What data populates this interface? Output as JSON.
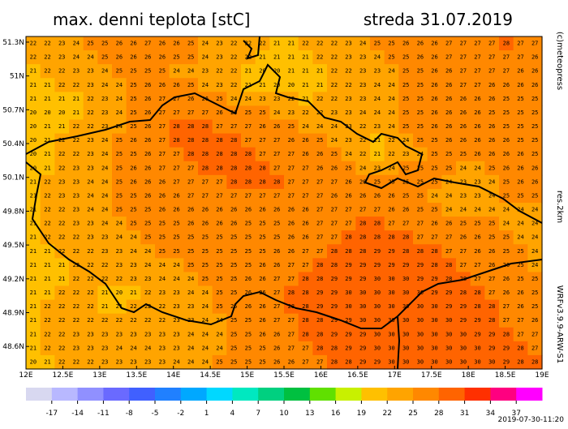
{
  "header": {
    "title": "max. denni teplota [stC]",
    "date": "streda 31.07.2019"
  },
  "credits": {
    "copyright": "(c)meteopress",
    "resolution": "res.2km",
    "model": "WRFv3.9.9-ARW-S1",
    "timestamp": "2019-07-30-11:20"
  },
  "map": {
    "xlim": [
      12,
      19
    ],
    "ylim": [
      48.4,
      51.35
    ],
    "xticks": [
      {
        "value": 12,
        "label": "12E"
      },
      {
        "value": 12.5,
        "label": "12.5E"
      },
      {
        "value": 13,
        "label": "13E"
      },
      {
        "value": 13.5,
        "label": "13.5E"
      },
      {
        "value": 14,
        "label": "14E"
      },
      {
        "value": 14.5,
        "label": "14.5E"
      },
      {
        "value": 15,
        "label": "15E"
      },
      {
        "value": 15.5,
        "label": "15.5E"
      },
      {
        "value": 16,
        "label": "16E"
      },
      {
        "value": 16.5,
        "label": "16.5E"
      },
      {
        "value": 17,
        "label": "17E"
      },
      {
        "value": 17.5,
        "label": "17.5E"
      },
      {
        "value": 18,
        "label": "18E"
      },
      {
        "value": 18.5,
        "label": "18.5E"
      },
      {
        "value": 19,
        "label": "19E"
      }
    ],
    "yticks": [
      {
        "value": 51.3,
        "label": "51.3N"
      },
      {
        "value": 51,
        "label": "51N"
      },
      {
        "value": 50.7,
        "label": "50.7N"
      },
      {
        "value": 50.4,
        "label": "50.4N"
      },
      {
        "value": 50.1,
        "label": "50.1N"
      },
      {
        "value": 49.8,
        "label": "49.8N"
      },
      {
        "value": 49.5,
        "label": "49.5N"
      },
      {
        "value": 49.2,
        "label": "49.2N"
      },
      {
        "value": 48.9,
        "label": "48.9N"
      },
      {
        "value": 48.6,
        "label": "48.6N"
      }
    ],
    "grid": [
      [
        22,
        22,
        23,
        24,
        25,
        25,
        26,
        26,
        27,
        26,
        26,
        25,
        24,
        23,
        22,
        22,
        22,
        21,
        21,
        22,
        22,
        22,
        23,
        24,
        25,
        25,
        26,
        26,
        26,
        27,
        27,
        27,
        27,
        28,
        27,
        27
      ],
      [
        22,
        22,
        23,
        24,
        24,
        25,
        26,
        26,
        26,
        26,
        25,
        25,
        24,
        23,
        22,
        22,
        21,
        21,
        21,
        21,
        22,
        22,
        23,
        23,
        24,
        25,
        25,
        26,
        26,
        27,
        27,
        27,
        27,
        27,
        27,
        26
      ],
      [
        21,
        22,
        22,
        23,
        23,
        24,
        25,
        25,
        25,
        25,
        24,
        24,
        23,
        22,
        22,
        21,
        20,
        20,
        21,
        21,
        21,
        22,
        22,
        23,
        23,
        24,
        25,
        25,
        26,
        26,
        27,
        27,
        27,
        27,
        26,
        26
      ],
      [
        21,
        21,
        22,
        22,
        23,
        24,
        24,
        25,
        26,
        26,
        26,
        25,
        24,
        23,
        22,
        21,
        21,
        20,
        20,
        21,
        21,
        22,
        22,
        23,
        24,
        24,
        25,
        25,
        26,
        26,
        27,
        27,
        26,
        26,
        26,
        26
      ],
      [
        21,
        21,
        21,
        21,
        22,
        23,
        24,
        25,
        26,
        27,
        27,
        26,
        26,
        25,
        24,
        24,
        23,
        23,
        22,
        21,
        22,
        22,
        23,
        23,
        24,
        24,
        25,
        25,
        26,
        26,
        26,
        26,
        26,
        25,
        25,
        25
      ],
      [
        20,
        20,
        20,
        21,
        22,
        23,
        24,
        25,
        26,
        27,
        27,
        27,
        27,
        26,
        26,
        25,
        25,
        24,
        23,
        22,
        22,
        23,
        23,
        24,
        24,
        24,
        25,
        25,
        26,
        26,
        26,
        26,
        25,
        25,
        25,
        25
      ],
      [
        20,
        21,
        21,
        22,
        22,
        23,
        24,
        25,
        26,
        27,
        28,
        28,
        28,
        27,
        27,
        27,
        26,
        26,
        25,
        24,
        24,
        24,
        23,
        22,
        23,
        24,
        25,
        25,
        26,
        26,
        26,
        26,
        26,
        25,
        25,
        25
      ],
      [
        20,
        21,
        22,
        22,
        23,
        24,
        25,
        26,
        26,
        27,
        28,
        28,
        28,
        28,
        28,
        27,
        27,
        27,
        26,
        26,
        25,
        24,
        23,
        22,
        21,
        22,
        24,
        25,
        25,
        26,
        26,
        26,
        26,
        26,
        25,
        25
      ],
      [
        20,
        21,
        22,
        22,
        23,
        24,
        25,
        25,
        26,
        27,
        27,
        28,
        28,
        28,
        28,
        28,
        27,
        27,
        27,
        26,
        26,
        25,
        24,
        22,
        21,
        22,
        23,
        24,
        25,
        25,
        25,
        26,
        26,
        26,
        26,
        25
      ],
      [
        20,
        21,
        22,
        23,
        23,
        24,
        25,
        26,
        26,
        27,
        27,
        27,
        28,
        28,
        28,
        28,
        28,
        27,
        27,
        27,
        26,
        26,
        25,
        24,
        23,
        24,
        25,
        25,
        25,
        25,
        24,
        24,
        25,
        26,
        26,
        26
      ],
      [
        21,
        22,
        23,
        23,
        24,
        24,
        25,
        26,
        26,
        26,
        27,
        27,
        27,
        27,
        28,
        28,
        28,
        28,
        27,
        27,
        27,
        27,
        26,
        26,
        25,
        25,
        25,
        25,
        25,
        24,
        23,
        23,
        24,
        25,
        26,
        26
      ],
      [
        21,
        22,
        23,
        23,
        24,
        24,
        25,
        25,
        26,
        26,
        26,
        27,
        27,
        27,
        27,
        27,
        27,
        27,
        27,
        27,
        27,
        26,
        26,
        26,
        26,
        26,
        25,
        25,
        24,
        24,
        23,
        23,
        24,
        25,
        25,
        25
      ],
      [
        21,
        22,
        22,
        23,
        24,
        24,
        25,
        25,
        25,
        26,
        26,
        26,
        26,
        26,
        26,
        26,
        26,
        26,
        26,
        26,
        27,
        27,
        27,
        27,
        27,
        26,
        26,
        25,
        25,
        24,
        24,
        24,
        24,
        24,
        24,
        24
      ],
      [
        21,
        22,
        22,
        23,
        23,
        24,
        24,
        25,
        25,
        25,
        25,
        26,
        26,
        26,
        26,
        25,
        25,
        25,
        26,
        26,
        27,
        27,
        27,
        28,
        28,
        27,
        27,
        27,
        26,
        26,
        25,
        25,
        25,
        24,
        24,
        24
      ],
      [
        21,
        22,
        22,
        22,
        23,
        23,
        24,
        24,
        25,
        25,
        25,
        25,
        25,
        25,
        25,
        25,
        25,
        25,
        26,
        26,
        27,
        27,
        28,
        28,
        28,
        28,
        28,
        27,
        27,
        27,
        26,
        26,
        25,
        25,
        24,
        24
      ],
      [
        21,
        21,
        22,
        22,
        22,
        23,
        23,
        24,
        24,
        25,
        25,
        25,
        25,
        25,
        25,
        25,
        25,
        26,
        26,
        27,
        27,
        28,
        28,
        28,
        29,
        29,
        28,
        28,
        28,
        27,
        27,
        26,
        26,
        25,
        25,
        24
      ],
      [
        21,
        21,
        21,
        22,
        22,
        22,
        23,
        23,
        24,
        24,
        24,
        25,
        25,
        25,
        25,
        25,
        26,
        26,
        27,
        27,
        28,
        28,
        29,
        29,
        29,
        29,
        29,
        29,
        28,
        28,
        27,
        27,
        26,
        26,
        25,
        24
      ],
      [
        21,
        21,
        21,
        22,
        22,
        22,
        22,
        23,
        23,
        24,
        24,
        24,
        25,
        25,
        25,
        26,
        26,
        27,
        27,
        28,
        28,
        29,
        29,
        29,
        30,
        30,
        30,
        29,
        29,
        28,
        28,
        27,
        27,
        26,
        25,
        25
      ],
      [
        21,
        21,
        22,
        22,
        22,
        21,
        20,
        21,
        22,
        23,
        23,
        24,
        24,
        25,
        25,
        26,
        26,
        27,
        28,
        28,
        29,
        29,
        30,
        30,
        30,
        30,
        30,
        30,
        29,
        29,
        28,
        28,
        27,
        26,
        26,
        25
      ],
      [
        21,
        22,
        22,
        22,
        22,
        21,
        21,
        22,
        22,
        22,
        23,
        23,
        24,
        25,
        25,
        26,
        26,
        27,
        28,
        28,
        29,
        29,
        30,
        30,
        30,
        30,
        30,
        30,
        30,
        29,
        29,
        28,
        28,
        27,
        26,
        25
      ],
      [
        21,
        22,
        22,
        22,
        22,
        22,
        22,
        22,
        22,
        22,
        23,
        23,
        24,
        24,
        25,
        25,
        26,
        27,
        27,
        28,
        28,
        29,
        29,
        30,
        30,
        30,
        30,
        30,
        30,
        30,
        29,
        29,
        28,
        27,
        27,
        26
      ],
      [
        21,
        22,
        22,
        23,
        23,
        23,
        23,
        23,
        23,
        23,
        23,
        24,
        24,
        24,
        25,
        25,
        26,
        26,
        27,
        28,
        28,
        29,
        29,
        29,
        30,
        30,
        30,
        30,
        30,
        30,
        30,
        29,
        29,
        28,
        27,
        27
      ],
      [
        21,
        22,
        22,
        23,
        23,
        23,
        24,
        24,
        24,
        23,
        23,
        24,
        24,
        24,
        25,
        25,
        25,
        26,
        27,
        27,
        28,
        28,
        29,
        29,
        30,
        30,
        30,
        30,
        30,
        30,
        30,
        30,
        29,
        29,
        28,
        27
      ],
      [
        20,
        21,
        22,
        22,
        22,
        23,
        23,
        23,
        23,
        23,
        24,
        24,
        24,
        25,
        25,
        25,
        25,
        26,
        26,
        27,
        27,
        28,
        28,
        29,
        29,
        30,
        30,
        30,
        30,
        30,
        30,
        30,
        30,
        29,
        28,
        28
      ]
    ]
  },
  "colorbar": {
    "lim": [
      -20,
      40
    ],
    "ticks": [
      -17,
      -14,
      -11,
      -8,
      -5,
      -2,
      1,
      4,
      7,
      10,
      13,
      16,
      19,
      22,
      25,
      28,
      31,
      34,
      37
    ],
    "colors": [
      "#d8d8f0",
      "#b8b8ff",
      "#9090ff",
      "#6a6aff",
      "#4060ff",
      "#2080ff",
      "#00a8ff",
      "#00d8ff",
      "#00e8c0",
      "#00d080",
      "#00c040",
      "#60e000",
      "#c8f000",
      "#ffc000",
      "#ffa400",
      "#ff8800",
      "#ff6400",
      "#ff3000",
      "#ff0080",
      "#ff00ff"
    ]
  }
}
